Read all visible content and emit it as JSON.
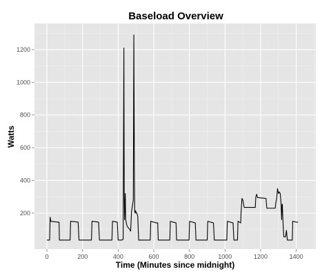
{
  "chart_data": {
    "type": "line",
    "title": "Baseload Overview",
    "xlabel": "Time (Minutes since midnight)",
    "ylabel": "Watts",
    "xlim": [
      -70,
      1510
    ],
    "ylim": [
      -20,
      1360
    ],
    "xticks": [
      0,
      200,
      400,
      600,
      800,
      1000,
      1200,
      1400
    ],
    "yticks": [
      200,
      400,
      600,
      800,
      1000,
      1200
    ],
    "grid": true,
    "series": [
      {
        "color": "#000000",
        "points": [
          [
            0,
            35
          ],
          [
            15,
            35
          ],
          [
            18,
            175
          ],
          [
            22,
            150
          ],
          [
            60,
            145
          ],
          [
            68,
            145
          ],
          [
            70,
            35
          ],
          [
            130,
            35
          ],
          [
            133,
            150
          ],
          [
            175,
            145
          ],
          [
            180,
            35
          ],
          [
            250,
            35
          ],
          [
            253,
            150
          ],
          [
            290,
            145
          ],
          [
            295,
            35
          ],
          [
            365,
            35
          ],
          [
            368,
            150
          ],
          [
            395,
            145
          ],
          [
            400,
            35
          ],
          [
            420,
            35
          ],
          [
            428,
            40
          ],
          [
            432,
            1210
          ],
          [
            434,
            320
          ],
          [
            436,
            160
          ],
          [
            438,
            250
          ],
          [
            440,
            320
          ],
          [
            442,
            160
          ],
          [
            450,
            120
          ],
          [
            465,
            100
          ],
          [
            470,
            90
          ],
          [
            475,
            210
          ],
          [
            478,
            230
          ],
          [
            482,
            260
          ],
          [
            485,
            280
          ],
          [
            488,
            1290
          ],
          [
            491,
            480
          ],
          [
            493,
            210
          ],
          [
            495,
            200
          ],
          [
            498,
            215
          ],
          [
            502,
            200
          ],
          [
            505,
            200
          ],
          [
            510,
            180
          ],
          [
            515,
            35
          ],
          [
            580,
            35
          ],
          [
            583,
            150
          ],
          [
            615,
            140
          ],
          [
            622,
            140
          ],
          [
            625,
            35
          ],
          [
            690,
            35
          ],
          [
            693,
            150
          ],
          [
            725,
            140
          ],
          [
            728,
            35
          ],
          [
            798,
            35
          ],
          [
            801,
            150
          ],
          [
            833,
            140
          ],
          [
            837,
            35
          ],
          [
            900,
            35
          ],
          [
            903,
            150
          ],
          [
            935,
            140
          ],
          [
            940,
            35
          ],
          [
            1010,
            35
          ],
          [
            1013,
            150
          ],
          [
            1045,
            140
          ],
          [
            1050,
            35
          ],
          [
            1070,
            35
          ],
          [
            1073,
            150
          ],
          [
            1088,
            140
          ],
          [
            1090,
            200
          ],
          [
            1095,
            290
          ],
          [
            1100,
            280
          ],
          [
            1105,
            250
          ],
          [
            1108,
            235
          ],
          [
            1170,
            235
          ],
          [
            1173,
            300
          ],
          [
            1178,
            315
          ],
          [
            1182,
            295
          ],
          [
            1230,
            290
          ],
          [
            1235,
            230
          ],
          [
            1282,
            230
          ],
          [
            1285,
            260
          ],
          [
            1290,
            290
          ],
          [
            1295,
            350
          ],
          [
            1300,
            320
          ],
          [
            1305,
            330
          ],
          [
            1310,
            320
          ],
          [
            1315,
            255
          ],
          [
            1318,
            160
          ],
          [
            1320,
            250
          ],
          [
            1322,
            255
          ],
          [
            1325,
            160
          ],
          [
            1330,
            55
          ],
          [
            1340,
            55
          ],
          [
            1345,
            95
          ],
          [
            1350,
            35
          ],
          [
            1378,
            35
          ],
          [
            1380,
            150
          ],
          [
            1400,
            145
          ],
          [
            1410,
            145
          ]
        ]
      }
    ]
  }
}
